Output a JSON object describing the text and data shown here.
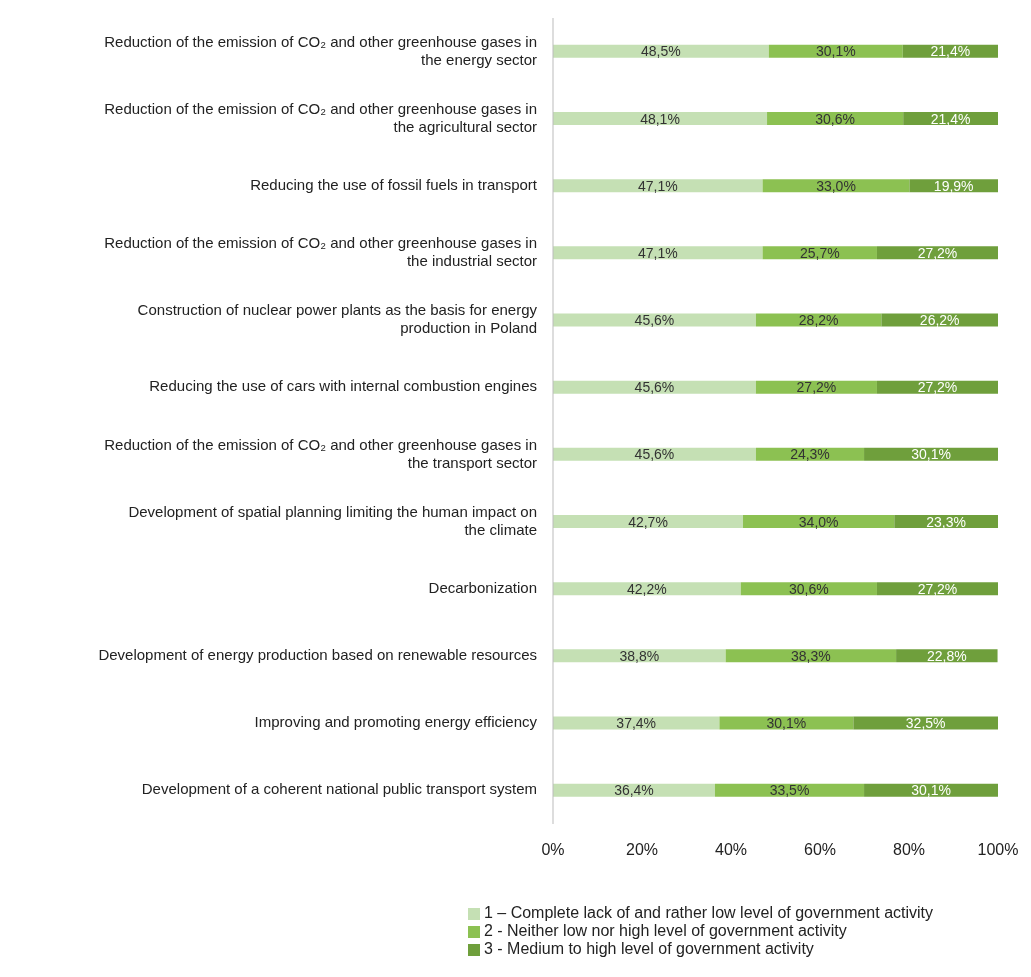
{
  "chart_data": {
    "type": "bar",
    "orientation": "horizontal",
    "stacked": true,
    "categories": [
      "Reduction of the emission of CO₂ and other greenhouse gases in the energy sector",
      "Reduction of the emission of CO₂ and other greenhouse gases in the agricultural sector",
      "Reducing the use of fossil fuels in transport",
      "Reduction of the emission of CO₂ and other greenhouse gases in the industrial sector",
      "Construction of nuclear power plants as the basis for energy production in Poland",
      "Reducing the use of cars with internal combustion engines",
      "Reduction of the emission of CO₂ and other greenhouse gases in the transport sector",
      "Development of spatial planning limiting the human impact on the climate",
      "Decarbonization",
      "Development of energy production based on renewable resources",
      "Improving and promoting energy efficiency",
      "Development of a coherent national public transport system"
    ],
    "series": [
      {
        "name": "1 – Complete lack of and rather low level of government activity",
        "color": "#c5e0b4",
        "values": [
          48.5,
          48.1,
          47.1,
          47.1,
          45.6,
          45.6,
          45.6,
          42.7,
          42.2,
          38.8,
          37.4,
          36.4
        ],
        "value_labels": [
          "48,5%",
          "48,1%",
          "47,1%",
          "47,1%",
          "45,6%",
          "45,6%",
          "45,6%",
          "42,7%",
          "42,2%",
          "38,8%",
          "37,4%",
          "36,4%"
        ]
      },
      {
        "name": "2 - Neither low nor high level of government activity",
        "color": "#8cc152",
        "values": [
          30.1,
          30.6,
          33.0,
          25.7,
          28.2,
          27.2,
          24.3,
          34.0,
          30.6,
          38.3,
          30.1,
          33.5
        ],
        "value_labels": [
          "30,1%",
          "30,6%",
          "33,0%",
          "25,7%",
          "28,2%",
          "27,2%",
          "24,3%",
          "34,0%",
          "30,6%",
          "38,3%",
          "30,1%",
          "33,5%"
        ]
      },
      {
        "name": "3 - Medium to high level of government activity",
        "color": "#6f9f3c",
        "values": [
          21.4,
          21.4,
          19.9,
          27.2,
          26.2,
          27.2,
          30.1,
          23.3,
          27.2,
          22.8,
          32.5,
          30.1
        ],
        "value_labels": [
          "21,4%",
          "21,4%",
          "19,9%",
          "27,2%",
          "26,2%",
          "27,2%",
          "30,1%",
          "23,3%",
          "27,2%",
          "22,8%",
          "32,5%",
          "30,1%"
        ]
      }
    ],
    "xlim": [
      0,
      100
    ],
    "xticks": [
      {
        "value": 0,
        "label": "0%"
      },
      {
        "value": 20,
        "label": "20%"
      },
      {
        "value": 40,
        "label": "40%"
      },
      {
        "value": 60,
        "label": "60%"
      },
      {
        "value": 80,
        "label": "80%"
      },
      {
        "value": 100,
        "label": "100%"
      }
    ],
    "grid": false,
    "legend": "bottom"
  }
}
